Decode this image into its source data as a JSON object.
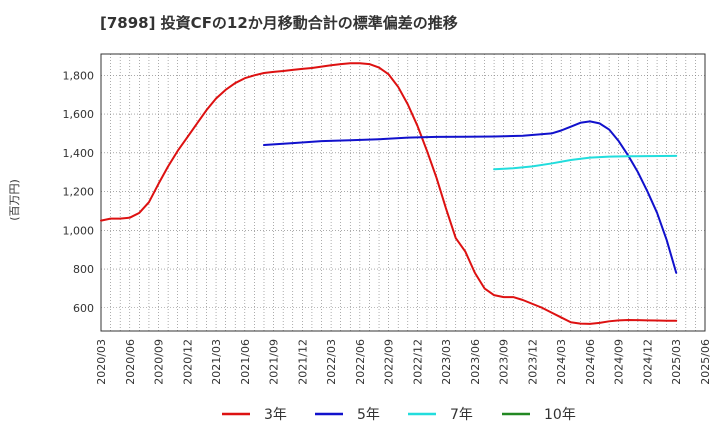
{
  "chart_data": {
    "type": "line",
    "title": "[7898]  投資CFの12か月移動合計の標準偏差の推移",
    "ylabel": "(百万円)",
    "xlabel": "",
    "ylim": [
      480,
      1910
    ],
    "yticks": [
      600,
      800,
      1000,
      1200,
      1400,
      1600,
      1800
    ],
    "ytick_labels": [
      "600",
      "800",
      "1,000",
      "1,200",
      "1,400",
      "1,600",
      "1,800"
    ],
    "xlim": [
      "2020-03",
      "2025-06"
    ],
    "xtick_labels": [
      "2020/03",
      "2020/06",
      "2020/09",
      "2020/12",
      "2021/03",
      "2021/06",
      "2021/09",
      "2021/12",
      "2022/03",
      "2022/06",
      "2022/09",
      "2022/12",
      "2023/03",
      "2023/06",
      "2023/09",
      "2023/12",
      "2024/03",
      "2024/06",
      "2024/09",
      "2024/12",
      "2025/03",
      "2025/06"
    ],
    "grid": true,
    "legend_position": "bottom",
    "series": [
      {
        "name": "3年",
        "color": "#dd1111",
        "x": [
          "2020-03",
          "2020-04",
          "2020-05",
          "2020-06",
          "2020-07",
          "2020-08",
          "2020-09",
          "2020-10",
          "2020-11",
          "2020-12",
          "2021-01",
          "2021-02",
          "2021-03",
          "2021-04",
          "2021-05",
          "2021-06",
          "2021-07",
          "2021-08",
          "2021-09",
          "2021-10",
          "2021-11",
          "2021-12",
          "2022-01",
          "2022-02",
          "2022-03",
          "2022-04",
          "2022-05",
          "2022-06",
          "2022-07",
          "2022-08",
          "2022-09",
          "2022-10",
          "2022-11",
          "2022-12",
          "2023-01",
          "2023-02",
          "2023-03",
          "2023-04",
          "2023-05",
          "2023-06",
          "2023-07",
          "2023-08",
          "2023-09",
          "2023-10",
          "2023-11",
          "2023-12",
          "2024-01",
          "2024-02",
          "2024-03",
          "2024-04",
          "2024-05",
          "2024-06",
          "2024-07",
          "2024-08",
          "2024-09",
          "2024-10",
          "2024-11",
          "2024-12",
          "2025-01",
          "2025-02",
          "2025-03"
        ],
        "values": [
          1050,
          1060,
          1060,
          1065,
          1090,
          1145,
          1240,
          1330,
          1410,
          1480,
          1550,
          1620,
          1680,
          1725,
          1760,
          1785,
          1800,
          1812,
          1818,
          1822,
          1828,
          1833,
          1838,
          1845,
          1852,
          1858,
          1862,
          1862,
          1858,
          1840,
          1805,
          1740,
          1650,
          1540,
          1410,
          1270,
          1110,
          960,
          890,
          780,
          700,
          665,
          655,
          655,
          640,
          620,
          600,
          575,
          550,
          525,
          518,
          517,
          522,
          530,
          535,
          537,
          536,
          535,
          534,
          533,
          533
        ]
      },
      {
        "name": "5年",
        "color": "#1111cc",
        "x": [
          "2021-08",
          "2021-11",
          "2022-02",
          "2022-05",
          "2022-08",
          "2022-11",
          "2023-02",
          "2023-05",
          "2023-08",
          "2023-11",
          "2024-02",
          "2024-03",
          "2024-04",
          "2024-05",
          "2024-06",
          "2024-07",
          "2024-08",
          "2024-09",
          "2024-10",
          "2024-11",
          "2024-12",
          "2025-01",
          "2025-02",
          "2025-03"
        ],
        "values": [
          1440,
          1450,
          1460,
          1465,
          1470,
          1478,
          1482,
          1483,
          1484,
          1488,
          1500,
          1515,
          1535,
          1555,
          1562,
          1552,
          1520,
          1460,
          1385,
          1300,
          1200,
          1090,
          950,
          780
        ]
      },
      {
        "name": "7年",
        "color": "#22dddd",
        "x": [
          "2023-08",
          "2023-10",
          "2023-12",
          "2024-02",
          "2024-04",
          "2024-06",
          "2024-08",
          "2024-10",
          "2024-12",
          "2025-03"
        ],
        "values": [
          1315,
          1320,
          1330,
          1345,
          1363,
          1375,
          1380,
          1382,
          1383,
          1384
        ]
      },
      {
        "name": "10年",
        "color": "#228822",
        "x": [],
        "values": []
      }
    ]
  }
}
